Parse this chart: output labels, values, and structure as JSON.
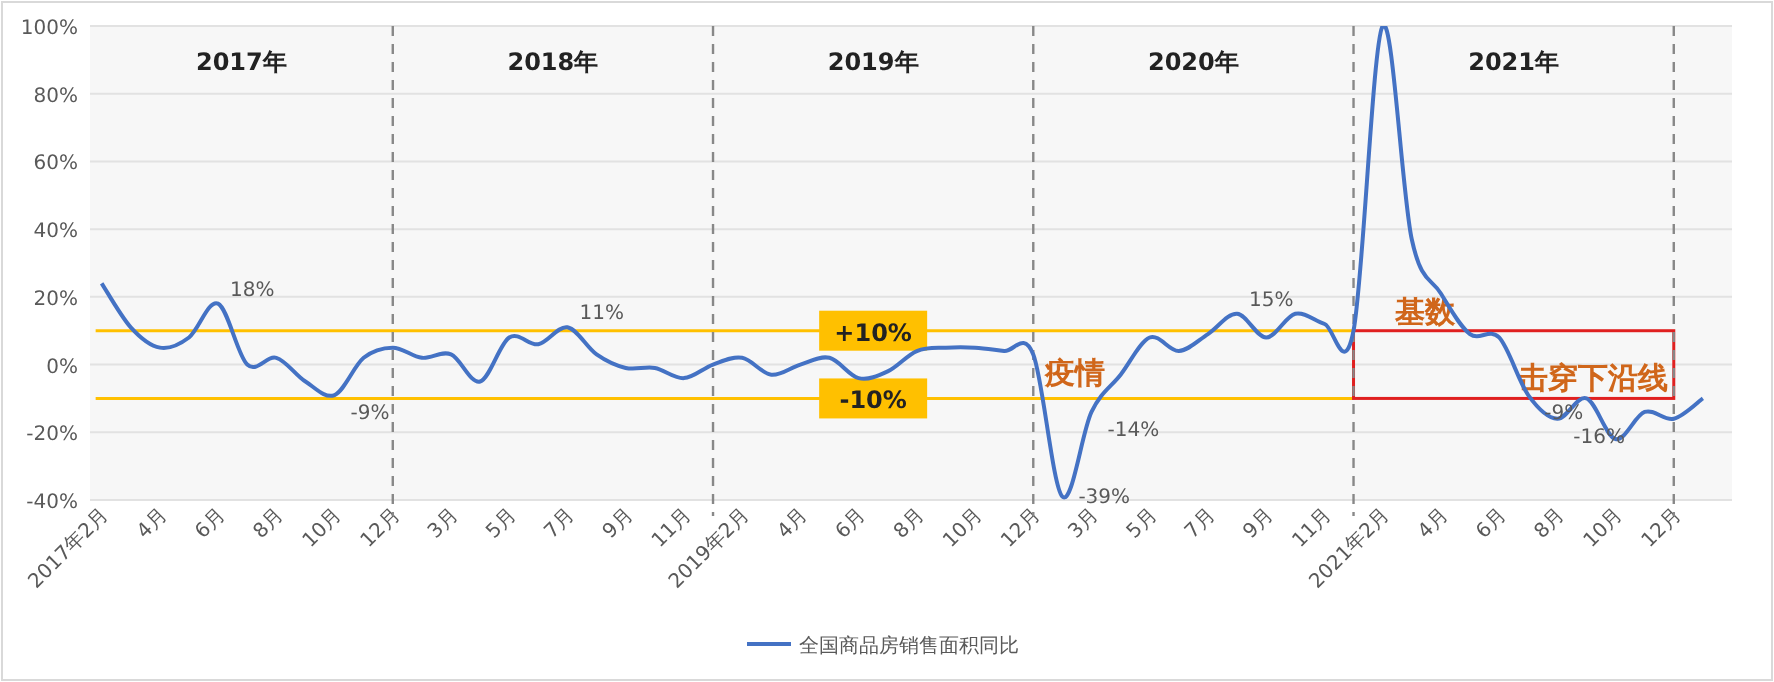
{
  "chart_data": {
    "type": "line",
    "categories": [
      "2017年2月",
      null,
      "4月",
      null,
      "6月",
      null,
      "8月",
      null,
      "10月",
      null,
      "12月",
      null,
      "3月",
      null,
      "5月",
      null,
      "7月",
      null,
      "9月",
      null,
      "11月",
      null,
      "2019年2月",
      null,
      "4月",
      null,
      "6月",
      null,
      "8月",
      null,
      "10月",
      null,
      "12月",
      null,
      "3月",
      null,
      "5月",
      null,
      "7月",
      null,
      "9月",
      null,
      "11月",
      null,
      "2021年2月",
      null,
      "4月",
      null,
      "6月",
      null,
      "8月",
      null,
      "10月",
      null,
      "12月",
      null
    ],
    "series": [
      {
        "name": "全国商品房销售面积同比",
        "color": "#4472c4",
        "values": [
          24,
          11,
          5,
          8,
          18,
          0,
          2,
          -5,
          -9,
          2,
          5,
          2,
          3,
          -5,
          8,
          6,
          11,
          3,
          -1,
          -1,
          -4,
          0,
          2,
          -3,
          0,
          2,
          -4,
          -2,
          4,
          5,
          5,
          4,
          3,
          -39,
          -14,
          -3,
          8,
          4,
          9,
          15,
          8,
          15,
          12,
          10,
          100,
          37,
          21,
          9,
          8,
          -9,
          -16,
          -10,
          -22,
          -14,
          -16,
          -10
        ],
        "value_labels": [
          null,
          null,
          null,
          null,
          "18%",
          null,
          null,
          null,
          "-9%",
          null,
          null,
          null,
          null,
          null,
          null,
          null,
          "11%",
          null,
          null,
          null,
          null,
          null,
          null,
          null,
          null,
          null,
          null,
          null,
          null,
          null,
          null,
          null,
          null,
          "-39%",
          "-14%",
          null,
          null,
          null,
          null,
          "15%",
          null,
          null,
          null,
          null,
          null,
          null,
          null,
          null,
          null,
          "-9%",
          "-16%",
          null,
          null,
          null,
          null,
          null
        ]
      }
    ],
    "ylim": [
      -40,
      100
    ],
    "yticks": [
      {
        "value": -40,
        "label": "-40%"
      },
      {
        "value": -20,
        "label": "-20%"
      },
      {
        "value": 0,
        "label": "0%"
      },
      {
        "value": 20,
        "label": "20%"
      },
      {
        "value": 40,
        "label": "40%"
      },
      {
        "value": 60,
        "label": "60%"
      },
      {
        "value": 80,
        "label": "80%"
      },
      {
        "value": 100,
        "label": "100%"
      }
    ],
    "grid": "y",
    "legend": "bottom",
    "ref_lines": [
      {
        "axis": "y",
        "value": 10,
        "label": "+10%",
        "color": "#ffc000"
      },
      {
        "axis": "y",
        "value": -10,
        "label": "-10%",
        "color": "#ffc000"
      }
    ],
    "annotations": [
      "2017年",
      "2018年",
      "2019年",
      "2020年",
      "2021年",
      "疫情",
      "基数",
      "击穿下沿线"
    ]
  }
}
